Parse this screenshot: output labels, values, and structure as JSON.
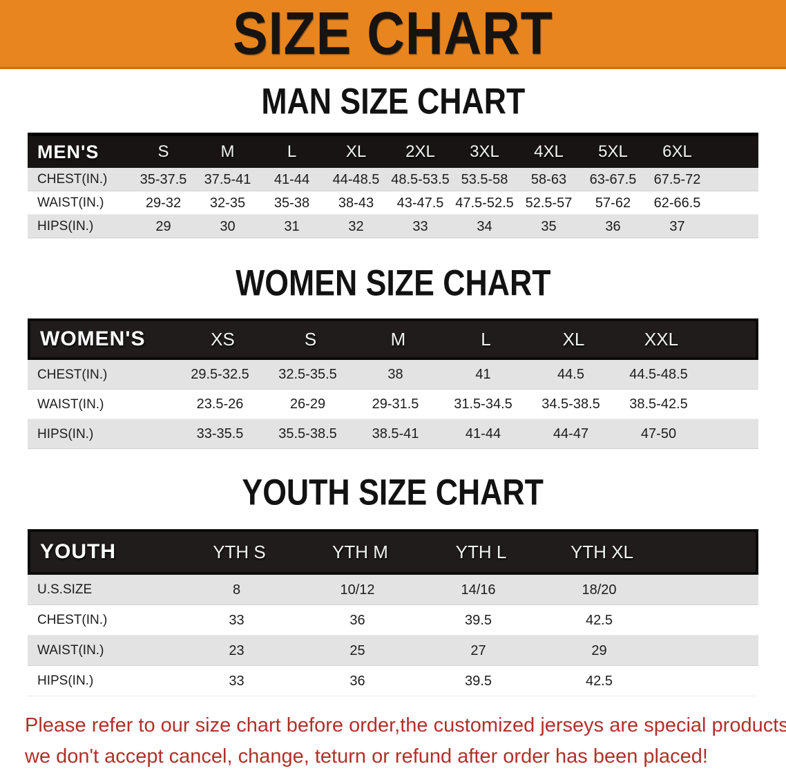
{
  "banner": {
    "title": "SIZE CHART",
    "bg_color": "#E8851F",
    "text_color": "#171310"
  },
  "sections": [
    {
      "heading": "MAN SIZE CHART",
      "header_label": "MEN'S",
      "columns": [
        "S",
        "M",
        "L",
        "XL",
        "2XL",
        "3XL",
        "4XL",
        "5XL",
        "6XL"
      ],
      "rows": [
        {
          "label": "CHEST(IN.)",
          "values": [
            "35-37.5",
            "37.5-41",
            "41-44",
            "44-48.5",
            "48.5-53.5",
            "53.5-58",
            "58-63",
            "63-67.5",
            "67.5-72"
          ]
        },
        {
          "label": "WAIST(IN.)",
          "values": [
            "29-32",
            "32-35",
            "35-38",
            "38-43",
            "43-47.5",
            "47.5-52.5",
            "52.5-57",
            "57-62",
            "62-66.5"
          ]
        },
        {
          "label": "HIPS(IN.)",
          "values": [
            "29",
            "30",
            "31",
            "32",
            "33",
            "34",
            "35",
            "36",
            "37"
          ]
        }
      ]
    },
    {
      "heading": "WOMEN SIZE CHART",
      "header_label": "WOMEN'S",
      "columns": [
        "XS",
        "S",
        "M",
        "L",
        "XL",
        "XXL"
      ],
      "rows": [
        {
          "label": "CHEST(IN.)",
          "values": [
            "29.5-32.5",
            "32.5-35.5",
            "38",
            "41",
            "44.5",
            "44.5-48.5"
          ]
        },
        {
          "label": "WAIST(IN.)",
          "values": [
            "23.5-26",
            "26-29",
            "29-31.5",
            "31.5-34.5",
            "34.5-38.5",
            "38.5-42.5"
          ]
        },
        {
          "label": "HIPS(IN.)",
          "values": [
            "33-35.5",
            "35.5-38.5",
            "38.5-41",
            "41-44",
            "44-47",
            "47-50"
          ]
        }
      ]
    },
    {
      "heading": "YOUTH SIZE CHART",
      "header_label": "YOUTH",
      "columns": [
        "YTH S",
        "YTH M",
        "YTH L",
        "YTH XL"
      ],
      "rows": [
        {
          "label": "U.S.SIZE",
          "values": [
            "8",
            "10/12",
            "14/16",
            "18/20"
          ]
        },
        {
          "label": "CHEST(IN.)",
          "values": [
            "33",
            "36",
            "39.5",
            "42.5"
          ]
        },
        {
          "label": "WAIST(IN.)",
          "values": [
            "23",
            "25",
            "27",
            "29"
          ]
        },
        {
          "label": "HIPS(IN.)",
          "values": [
            "33",
            "36",
            "39.5",
            "42.5"
          ]
        }
      ]
    }
  ],
  "row_colors": {
    "gray": "#E3E3E3",
    "white": "#FFFFFF",
    "header": "#1B1717"
  },
  "disclaimer": {
    "line1": "Please refer to our size chart before order,the customized jerseys are special products,",
    "line2": "we don't accept cancel, change, teturn or refund after order has been placed!",
    "text_color": "#B1302A"
  }
}
